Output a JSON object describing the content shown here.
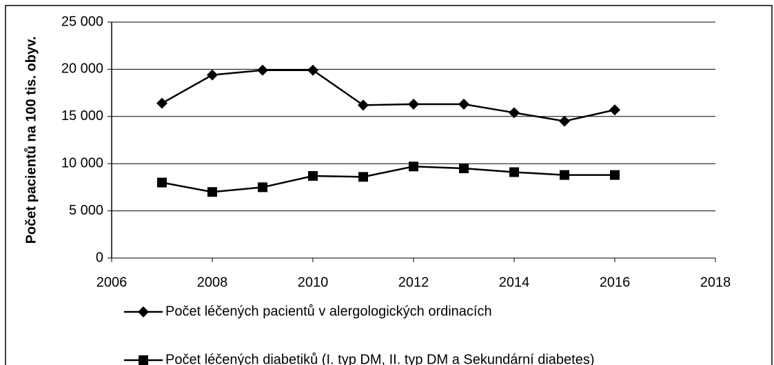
{
  "chart_data": {
    "type": "line",
    "y_label": "Počet pacientů na 100 tis. obyv.",
    "x": [
      2007,
      2008,
      2009,
      2010,
      2011,
      2012,
      2013,
      2014,
      2015,
      2016
    ],
    "series": [
      {
        "name": "Počet léčených pacientů v alergologických ordinacích",
        "color": "#000000",
        "marker": "diamond",
        "values": [
          16400,
          19400,
          19900,
          19900,
          16200,
          16300,
          16300,
          15400,
          14500,
          15700
        ]
      },
      {
        "name": "Počet léčených diabetiků (I. typ DM,  II. typ DM a Sekundární diabetes)",
        "color": "#000000",
        "marker": "square",
        "values": [
          8000,
          7000,
          7500,
          8700,
          8600,
          9700,
          9500,
          9100,
          8800,
          8800
        ]
      }
    ],
    "xlim": [
      2006,
      2018
    ],
    "xticks": [
      2006,
      2008,
      2010,
      2012,
      2014,
      2016,
      2018
    ],
    "ylim": [
      0,
      25000
    ],
    "yticks": [
      0,
      {
        "value": 5000,
        "label": "5 000"
      },
      {
        "value": 10000,
        "label": "10 000"
      },
      {
        "value": 15000,
        "label": "15 000"
      },
      {
        "value": 20000,
        "label": "20 000"
      },
      {
        "value": 25000,
        "label": "25 000"
      }
    ],
    "grid": true,
    "legend": "bottom"
  }
}
